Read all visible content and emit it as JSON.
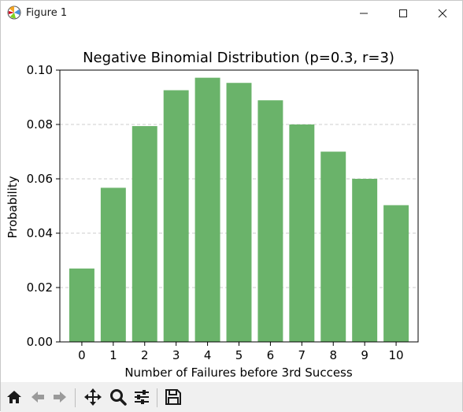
{
  "window": {
    "title": "Figure 1"
  },
  "toolbar": {
    "icons": [
      "home-icon",
      "back-icon",
      "forward-icon",
      "pan-icon",
      "zoom-icon",
      "configure-subplots-icon",
      "save-icon"
    ]
  },
  "colors": {
    "bar": "#6ab36a",
    "grid": "#cccccc",
    "axis": "#000000"
  },
  "chart_data": {
    "type": "bar",
    "title": "Negative Binomial Distribution (p=0.3, r=3)",
    "xlabel": "Number of Failures before 3rd Success",
    "ylabel": "Probability",
    "categories": [
      "0",
      "1",
      "2",
      "3",
      "4",
      "5",
      "6",
      "7",
      "8",
      "9",
      "10"
    ],
    "values": [
      0.027,
      0.0567,
      0.0794,
      0.0926,
      0.0972,
      0.0953,
      0.0889,
      0.08,
      0.07,
      0.06,
      0.0503
    ],
    "ylim": [
      0,
      0.1
    ],
    "yticks": [
      "0.00",
      "0.02",
      "0.04",
      "0.06",
      "0.08",
      "0.10"
    ],
    "ytick_values": [
      0,
      0.02,
      0.04,
      0.06,
      0.08,
      0.1
    ],
    "grid": "y-dashed",
    "legend": "none"
  }
}
